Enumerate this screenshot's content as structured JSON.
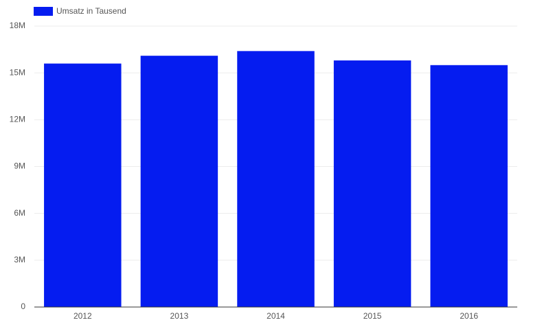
{
  "chart_data": {
    "type": "bar",
    "categories": [
      "2012",
      "2013",
      "2014",
      "2015",
      "2016"
    ],
    "series": [
      {
        "name": "Umsatz in Tausend",
        "color": "#051cf0",
        "values": [
          15600000,
          16100000,
          16400000,
          15800000,
          15500000
        ]
      }
    ],
    "ylim": [
      0,
      18000000
    ],
    "yticks": [
      0,
      {
        "value": 3000000,
        "label": "3M"
      },
      {
        "value": 6000000,
        "label": "6M"
      },
      {
        "value": 9000000,
        "label": "9M"
      },
      {
        "value": 12000000,
        "label": "12M"
      },
      {
        "value": 15000000,
        "label": "15M"
      },
      {
        "value": 18000000,
        "label": "18M"
      }
    ],
    "grid": true,
    "legend": "top-left"
  }
}
